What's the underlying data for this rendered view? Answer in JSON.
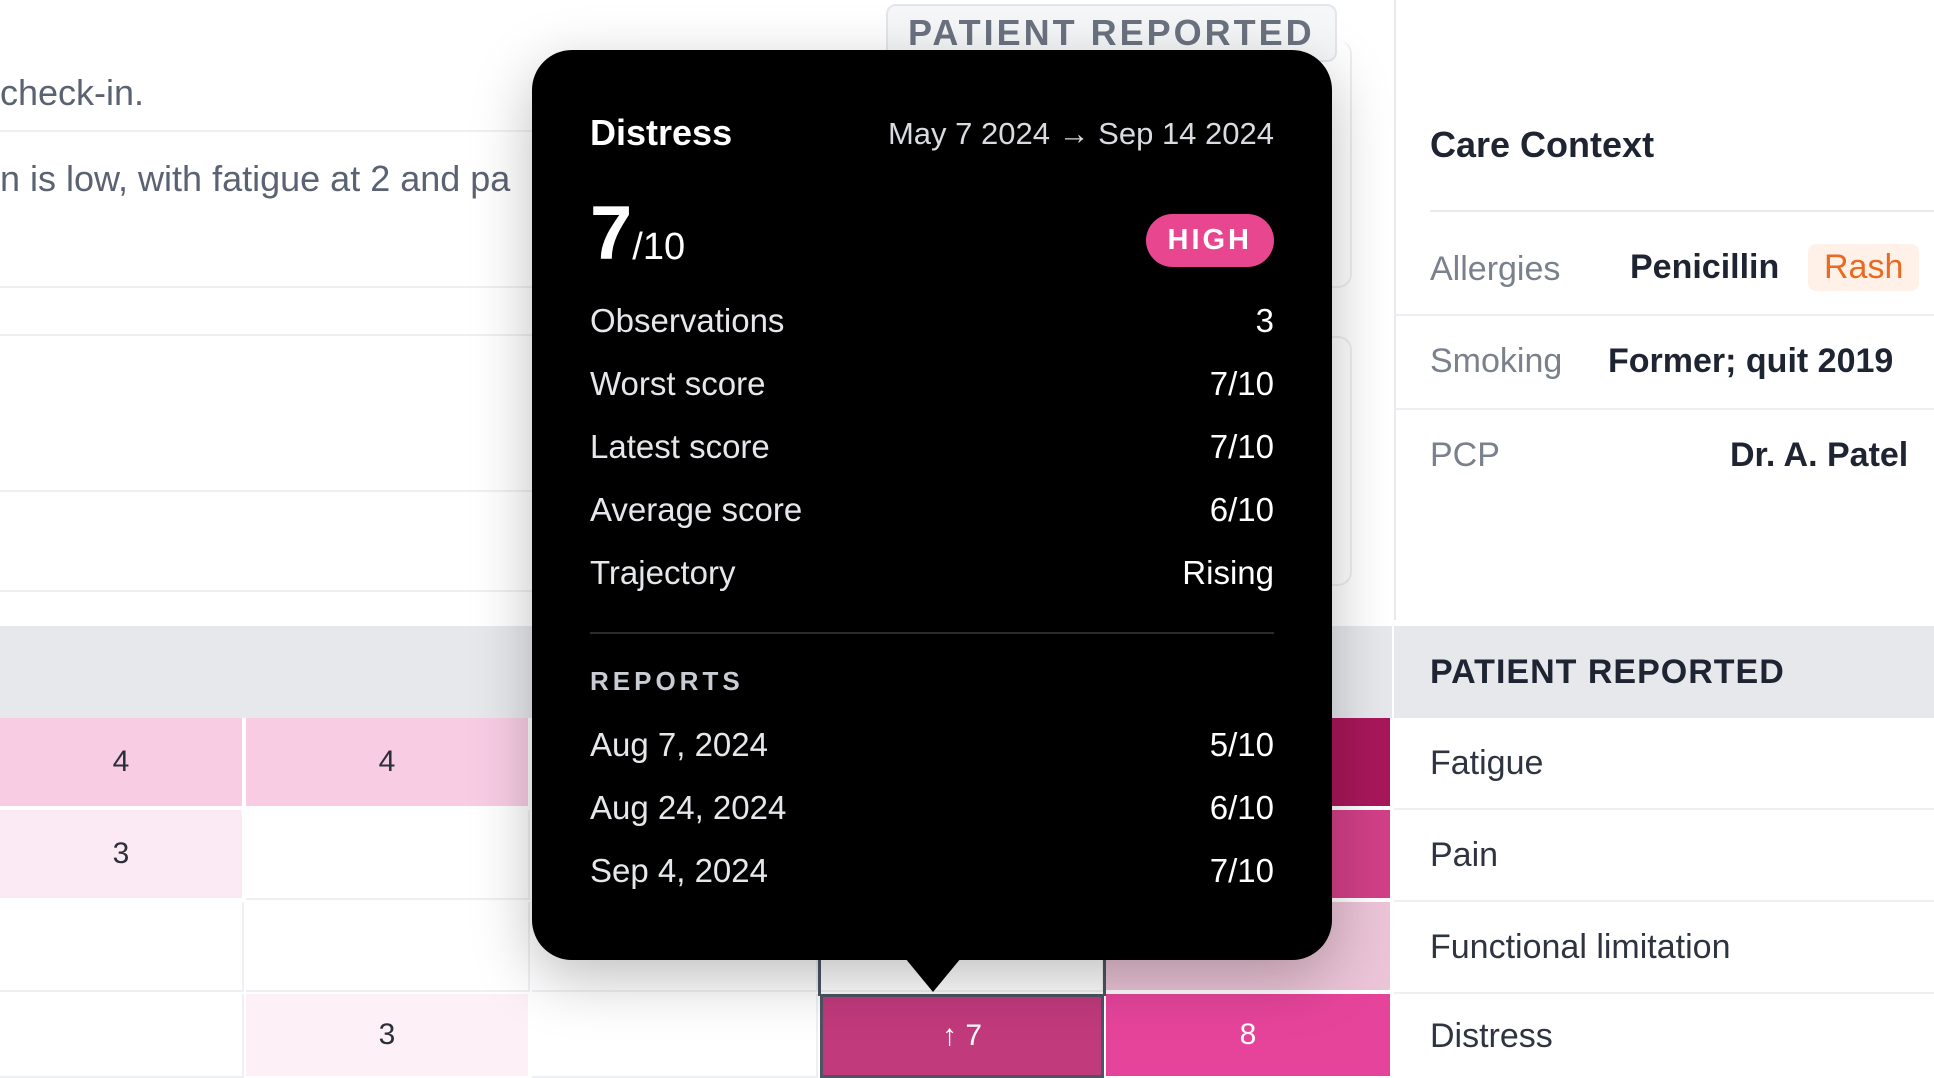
{
  "summary": {
    "line1": "check-in.",
    "line2": "n is low, with fatigue at 2 and pa"
  },
  "header_badge": "PATIENT REPORTED",
  "heatmap": {
    "colors": {
      "pink1": "#f8cde4",
      "pink2": "#fbe9f3",
      "pink3": "#fdf1f7",
      "deep": "#a8175a",
      "mid": "#d23f88",
      "hot": "#e6449a",
      "sel": "#c13a7c",
      "fade": "#ebc4d7"
    },
    "rows": [
      {
        "cells": [
          "4",
          "4",
          "",
          "",
          ""
        ]
      },
      {
        "cells": [
          "3",
          "",
          "",
          "",
          ""
        ]
      },
      {
        "cells": [
          "",
          "",
          "",
          "",
          ""
        ]
      },
      {
        "cells": [
          "",
          "3",
          "",
          "↑ 7",
          "8"
        ]
      }
    ]
  },
  "care_context": {
    "title": "Care Context",
    "allergies_label": "Allergies",
    "allergies_value": "Penicillin",
    "allergies_tag": "Rash",
    "smoking_label": "Smoking",
    "smoking_value": "Former; quit 2019",
    "pcp_label": "PCP",
    "pcp_value": "Dr. A. Patel"
  },
  "patient_reported": {
    "header": "PATIENT REPORTED",
    "items": [
      "Fatigue",
      "Pain",
      "Functional limitation",
      "Distress"
    ]
  },
  "tooltip": {
    "title": "Distress",
    "range": "May 7 2024 → Sep 14 2024",
    "score": "7",
    "score_den": "/10",
    "level": "HIGH",
    "level_color": "#e8468f",
    "stats": [
      {
        "label": "Observations",
        "value": "3"
      },
      {
        "label": "Worst score",
        "value": "7/10"
      },
      {
        "label": "Latest score",
        "value": "7/10"
      },
      {
        "label": "Average score",
        "value": "6/10"
      },
      {
        "label": "Trajectory",
        "value": "Rising"
      }
    ],
    "reports_title": "REPORTS",
    "reports": [
      {
        "date": "Aug 7, 2024",
        "value": "5/10"
      },
      {
        "date": "Aug 24, 2024",
        "value": "6/10"
      },
      {
        "date": "Sep 4, 2024",
        "value": "7/10"
      }
    ]
  }
}
